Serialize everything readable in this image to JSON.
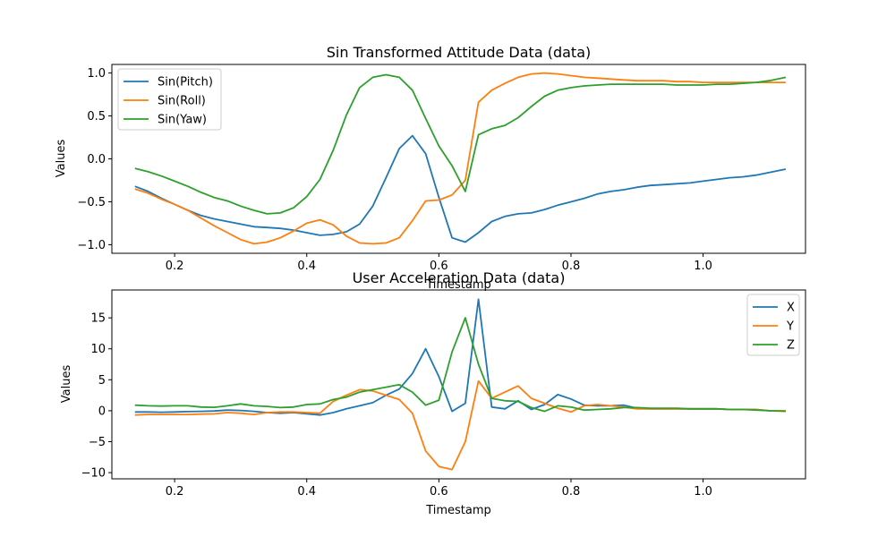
{
  "figure": {
    "background": "#ffffff"
  },
  "chart_data": [
    {
      "type": "line",
      "title": "Sin Transformed Attitude Data (data)",
      "xlabel": "Timestamp",
      "ylabel": "Values",
      "xlim": [
        0.105,
        1.155
      ],
      "ylim": [
        -1.1,
        1.1
      ],
      "xticks": [
        0.2,
        0.4,
        0.6,
        0.8,
        1.0
      ],
      "xtick_labels": [
        "0.2",
        "0.4",
        "0.6",
        "0.8",
        "1.0"
      ],
      "yticks": [
        -1.0,
        -0.5,
        0.0,
        0.5,
        1.0
      ],
      "ytick_labels": [
        "−1.0",
        "−0.5",
        "0.0",
        "0.5",
        "1.0"
      ],
      "grid": false,
      "legend_position": "top-left",
      "x": [
        0.14,
        0.16,
        0.18,
        0.2,
        0.22,
        0.24,
        0.26,
        0.28,
        0.3,
        0.32,
        0.34,
        0.36,
        0.38,
        0.4,
        0.42,
        0.44,
        0.46,
        0.48,
        0.5,
        0.52,
        0.54,
        0.56,
        0.58,
        0.6,
        0.62,
        0.64,
        0.66,
        0.68,
        0.7,
        0.72,
        0.74,
        0.76,
        0.78,
        0.8,
        0.82,
        0.84,
        0.86,
        0.88,
        0.9,
        0.92,
        0.94,
        0.96,
        0.98,
        1.0,
        1.02,
        1.04,
        1.06,
        1.08,
        1.1,
        1.125
      ],
      "series": [
        {
          "name": "Sin(Pitch)",
          "color": "#1f77b4",
          "values": [
            -0.32,
            -0.38,
            -0.46,
            -0.53,
            -0.6,
            -0.66,
            -0.7,
            -0.73,
            -0.76,
            -0.79,
            -0.8,
            -0.81,
            -0.83,
            -0.86,
            -0.89,
            -0.88,
            -0.85,
            -0.76,
            -0.55,
            -0.22,
            0.12,
            0.27,
            0.06,
            -0.45,
            -0.92,
            -0.97,
            -0.86,
            -0.73,
            -0.67,
            -0.64,
            -0.63,
            -0.59,
            -0.54,
            -0.5,
            -0.46,
            -0.41,
            -0.38,
            -0.36,
            -0.33,
            -0.31,
            -0.3,
            -0.29,
            -0.28,
            -0.26,
            -0.24,
            -0.22,
            -0.21,
            -0.19,
            -0.16,
            -0.12
          ]
        },
        {
          "name": "Sin(Roll)",
          "color": "#ff7f0e",
          "values": [
            -0.35,
            -0.4,
            -0.47,
            -0.53,
            -0.6,
            -0.69,
            -0.78,
            -0.86,
            -0.94,
            -0.99,
            -0.97,
            -0.92,
            -0.84,
            -0.75,
            -0.71,
            -0.77,
            -0.9,
            -0.98,
            -0.99,
            -0.98,
            -0.92,
            -0.72,
            -0.49,
            -0.48,
            -0.42,
            -0.25,
            0.66,
            0.8,
            0.88,
            0.95,
            0.99,
            1.0,
            0.99,
            0.97,
            0.95,
            0.94,
            0.93,
            0.92,
            0.91,
            0.91,
            0.91,
            0.9,
            0.9,
            0.89,
            0.89,
            0.89,
            0.89,
            0.89,
            0.89,
            0.89
          ]
        },
        {
          "name": "Sin(Yaw)",
          "color": "#2ca02c",
          "values": [
            -0.11,
            -0.15,
            -0.2,
            -0.26,
            -0.32,
            -0.39,
            -0.45,
            -0.49,
            -0.55,
            -0.6,
            -0.64,
            -0.63,
            -0.57,
            -0.44,
            -0.24,
            0.1,
            0.51,
            0.83,
            0.95,
            0.98,
            0.95,
            0.8,
            0.47,
            0.15,
            -0.08,
            -0.38,
            0.28,
            0.35,
            0.39,
            0.48,
            0.61,
            0.73,
            0.8,
            0.83,
            0.85,
            0.86,
            0.87,
            0.87,
            0.87,
            0.87,
            0.87,
            0.86,
            0.86,
            0.86,
            0.87,
            0.87,
            0.88,
            0.89,
            0.91,
            0.95
          ]
        }
      ]
    },
    {
      "type": "line",
      "title": "User Acceleration Data (data)",
      "xlabel": "Timestamp",
      "ylabel": "Values",
      "xlim": [
        0.105,
        1.155
      ],
      "ylim": [
        -11.0,
        19.5
      ],
      "xticks": [
        0.2,
        0.4,
        0.6,
        0.8,
        1.0
      ],
      "xtick_labels": [
        "0.2",
        "0.4",
        "0.6",
        "0.8",
        "1.0"
      ],
      "yticks": [
        -10,
        -5,
        0,
        5,
        10,
        15
      ],
      "ytick_labels": [
        "−10",
        "−5",
        "0",
        "5",
        "10",
        "15"
      ],
      "grid": false,
      "legend_position": "top-right",
      "x": [
        0.14,
        0.16,
        0.18,
        0.2,
        0.22,
        0.24,
        0.26,
        0.28,
        0.3,
        0.32,
        0.34,
        0.36,
        0.38,
        0.4,
        0.42,
        0.44,
        0.46,
        0.48,
        0.5,
        0.52,
        0.54,
        0.56,
        0.58,
        0.6,
        0.62,
        0.64,
        0.66,
        0.68,
        0.7,
        0.72,
        0.74,
        0.76,
        0.78,
        0.8,
        0.82,
        0.84,
        0.86,
        0.88,
        0.9,
        0.92,
        0.94,
        0.96,
        0.98,
        1.0,
        1.02,
        1.04,
        1.06,
        1.08,
        1.1,
        1.125
      ],
      "series": [
        {
          "name": "X",
          "color": "#1f77b4",
          "values": [
            -0.2,
            -0.2,
            -0.25,
            -0.2,
            -0.15,
            -0.1,
            -0.05,
            0.1,
            0.05,
            -0.1,
            -0.3,
            -0.4,
            -0.3,
            -0.5,
            -0.7,
            -0.3,
            0.3,
            0.8,
            1.3,
            2.5,
            3.5,
            6.0,
            10.0,
            5.5,
            -0.1,
            1.2,
            18.0,
            0.6,
            0.3,
            1.6,
            0.2,
            1.0,
            2.6,
            1.9,
            0.9,
            0.8,
            0.8,
            0.9,
            0.4,
            0.3,
            0.3,
            0.3,
            0.3,
            0.3,
            0.3,
            0.2,
            0.2,
            0.2,
            0.0,
            0.0
          ]
        },
        {
          "name": "Y",
          "color": "#ff7f0e",
          "values": [
            -0.7,
            -0.6,
            -0.6,
            -0.6,
            -0.6,
            -0.55,
            -0.5,
            -0.3,
            -0.4,
            -0.6,
            -0.3,
            -0.2,
            -0.2,
            -0.3,
            -0.4,
            1.5,
            2.5,
            3.4,
            3.2,
            2.5,
            1.8,
            -0.4,
            -6.5,
            -9.0,
            -9.5,
            -5.0,
            4.8,
            2.0,
            3.0,
            4.0,
            2.0,
            1.2,
            0.4,
            -0.2,
            0.8,
            1.0,
            0.8,
            0.6,
            0.3,
            0.3,
            0.3,
            0.3,
            0.3,
            0.3,
            0.3,
            0.2,
            0.2,
            0.2,
            0.0,
            0.0
          ]
        },
        {
          "name": "Z",
          "color": "#2ca02c",
          "values": [
            0.9,
            0.8,
            0.75,
            0.8,
            0.8,
            0.6,
            0.55,
            0.8,
            1.1,
            0.8,
            0.7,
            0.5,
            0.6,
            1.0,
            1.1,
            1.8,
            2.2,
            3.0,
            3.4,
            3.8,
            4.2,
            3.0,
            0.9,
            1.7,
            9.5,
            15.0,
            7.5,
            2.0,
            1.6,
            1.5,
            0.5,
            -0.1,
            0.8,
            0.6,
            0.1,
            0.2,
            0.3,
            0.5,
            0.5,
            0.4,
            0.4,
            0.4,
            0.3,
            0.3,
            0.3,
            0.2,
            0.2,
            0.1,
            0.0,
            -0.1
          ]
        }
      ]
    }
  ]
}
